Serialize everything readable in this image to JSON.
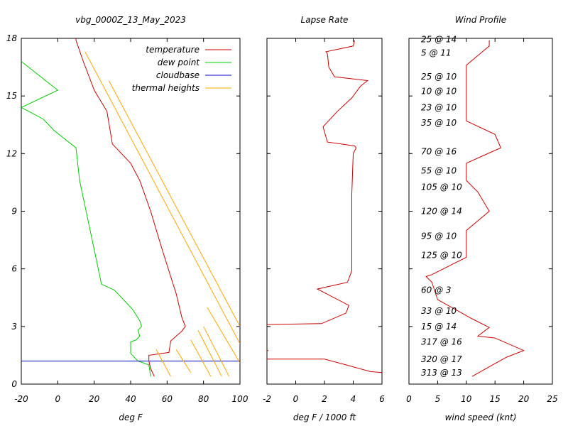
{
  "chart_data": [
    {
      "type": "line",
      "title": "vbg_0000Z_13_May_2023",
      "xlabel": "deg F",
      "ylabel": "",
      "xlim": [
        -20,
        100
      ],
      "ylim": [
        0,
        18
      ],
      "xticks": [
        -20,
        0,
        20,
        40,
        60,
        80,
        100
      ],
      "yticks": [
        0,
        3,
        6,
        9,
        12,
        15,
        18
      ],
      "legend_position": "top-right",
      "series": [
        {
          "name": "temperature",
          "color": "#cc0000",
          "points": [
            [
              53,
              0.4
            ],
            [
              51,
              0.8
            ],
            [
              50,
              1.2
            ],
            [
              50,
              1.5
            ],
            [
              61,
              1.65
            ],
            [
              62,
              2.25
            ],
            [
              68,
              2.75
            ],
            [
              70,
              3.0
            ],
            [
              68,
              3.5
            ],
            [
              65,
              4.7
            ],
            [
              63,
              5.3
            ],
            [
              57,
              7.1
            ],
            [
              51,
              9.0
            ],
            [
              45,
              10.6
            ],
            [
              40,
              11.5
            ],
            [
              30,
              12.5
            ],
            [
              27,
              14.2
            ],
            [
              20,
              15.3
            ],
            [
              14,
              16.8
            ],
            [
              10,
              17.9
            ],
            [
              10,
              18.0
            ]
          ]
        },
        {
          "name": "dew point",
          "color": "#00cc00",
          "points": [
            [
              51,
              0.4
            ],
            [
              50,
              1.0
            ],
            [
              44,
              1.2
            ],
            [
              40,
              1.6
            ],
            [
              40,
              2.2
            ],
            [
              43,
              2.3
            ],
            [
              45,
              2.5
            ],
            [
              44,
              2.8
            ],
            [
              46,
              3.0
            ],
            [
              45,
              3.3
            ],
            [
              41,
              3.9
            ],
            [
              31,
              4.9
            ],
            [
              24,
              5.2
            ],
            [
              20,
              7.0
            ],
            [
              12,
              10.6
            ],
            [
              10,
              12.3
            ],
            [
              -2,
              13.2
            ],
            [
              -8,
              13.8
            ],
            [
              -18,
              14.3
            ],
            [
              -20,
              14.4
            ],
            [
              0,
              15.3
            ],
            [
              -20,
              16.8
            ]
          ]
        },
        {
          "name": "cloudbase",
          "color": "#0000cc",
          "points": [
            [
              -20,
              1.2
            ],
            [
              100,
              1.2
            ]
          ]
        }
      ],
      "thermal_heights": {
        "name": "thermal heights",
        "color": "#ffa500",
        "lines": [
          [
            [
              54,
              1.8
            ],
            [
              62,
              0.4
            ]
          ],
          [
            [
              65,
              1.8
            ],
            [
              73,
              0.6
            ]
          ],
          [
            [
              84,
              0.4
            ],
            [
              73,
              2.3
            ]
          ],
          [
            [
              90,
              0.4
            ],
            [
              77,
              2.8
            ]
          ],
          [
            [
              94,
              0.4
            ],
            [
              80,
              3.0
            ]
          ],
          [
            [
              100,
              3.0
            ],
            [
              28,
              15.8
            ]
          ],
          [
            [
              100,
              2.1
            ],
            [
              15,
              17.3
            ]
          ],
          [
            [
              100,
              1.1
            ],
            [
              82,
              4.0
            ]
          ]
        ]
      }
    },
    {
      "type": "line",
      "title": "Lapse Rate",
      "xlabel": "deg F / 1000 ft",
      "ylabel": "",
      "xlim": [
        -2,
        6
      ],
      "ylim": [
        0,
        18
      ],
      "xticks": [
        -2,
        0,
        2,
        4,
        6
      ],
      "series": [
        {
          "name": "",
          "color": "#cc0000",
          "points": [
            [
              6,
              0.6
            ],
            [
              5.2,
              0.65
            ],
            [
              3.5,
              1.0
            ],
            [
              2,
              1.3
            ],
            [
              -2,
              1.3
            ],
            null,
            [
              -2,
              1.75
            ],
            [
              -1.9,
              1.75
            ],
            null,
            [
              -2,
              3.1
            ],
            [
              1.8,
              3.15
            ],
            [
              3.5,
              3.7
            ],
            [
              3.7,
              4.1
            ],
            [
              1.5,
              4.95
            ],
            [
              3.6,
              5.3
            ],
            [
              3.9,
              5.9
            ],
            [
              3.9,
              9.0
            ],
            [
              3.9,
              9.9
            ],
            [
              4.0,
              12.0
            ],
            [
              4.2,
              12.3
            ],
            [
              4.1,
              12.4
            ],
            [
              2.2,
              12.6
            ],
            [
              1.9,
              13.4
            ],
            [
              2.9,
              14.2
            ],
            [
              3.9,
              14.9
            ],
            [
              4.5,
              15.5
            ],
            [
              5.0,
              15.8
            ],
            [
              2.7,
              16.0
            ],
            [
              2.3,
              16.5
            ],
            [
              2.2,
              17.2
            ],
            [
              2.1,
              17.3
            ],
            [
              4.0,
              17.6
            ],
            [
              4.1,
              17.9
            ]
          ]
        }
      ]
    },
    {
      "type": "line",
      "title": "Wind Profile",
      "xlabel": "wind speed (knt)",
      "ylabel": "",
      "xlim": [
        0,
        25
      ],
      "ylim": [
        0,
        18
      ],
      "xticks": [
        0,
        5,
        10,
        15,
        20,
        25
      ],
      "series": [
        {
          "name": "",
          "color": "#cc0000",
          "points": [
            [
              11,
              0.4
            ],
            [
              14,
              0.9
            ],
            [
              17,
              1.4
            ],
            [
              20,
              1.75
            ],
            [
              15,
              2.4
            ],
            [
              12,
              2.5
            ],
            [
              14,
              2.95
            ],
            [
              11,
              3.4
            ],
            [
              5,
              4.4
            ],
            [
              4,
              5.3
            ],
            [
              3,
              5.6
            ],
            [
              4,
              5.7
            ],
            [
              10,
              6.6
            ],
            [
              10,
              6.8
            ],
            [
              10,
              7.6
            ],
            [
              10,
              8.0
            ],
            [
              14,
              9.0
            ],
            [
              12,
              10.0
            ],
            [
              10,
              10.6
            ],
            [
              10,
              11.2
            ],
            [
              10,
              11.5
            ],
            [
              13,
              11.9
            ],
            [
              16,
              12.3
            ],
            [
              15,
              13.0
            ],
            [
              10,
              13.7
            ],
            [
              10,
              14.2
            ],
            [
              10,
              14.9
            ],
            [
              10,
              15.2
            ],
            [
              10,
              15.9
            ],
            [
              10,
              16.4
            ],
            [
              10,
              16.6
            ],
            [
              12,
              17.1
            ],
            [
              14,
              17.6
            ],
            [
              14,
              17.9
            ]
          ]
        }
      ],
      "annotations": [
        {
          "text": "25 @ 14",
          "y": 17.95
        },
        {
          "text": "5 @ 11",
          "y": 17.25
        },
        {
          "text": "25 @ 10",
          "y": 16.0
        },
        {
          "text": "10 @ 10",
          "y": 15.25
        },
        {
          "text": "23 @ 10",
          "y": 14.4
        },
        {
          "text": "35 @ 10",
          "y": 13.6
        },
        {
          "text": "70 @ 16",
          "y": 12.1
        },
        {
          "text": "55 @ 10",
          "y": 11.1
        },
        {
          "text": "105 @ 10",
          "y": 10.25
        },
        {
          "text": "120 @ 14",
          "y": 9.0
        },
        {
          "text": "95 @ 10",
          "y": 7.7
        },
        {
          "text": "125 @ 10",
          "y": 6.7
        },
        {
          "text": "60 @ 3",
          "y": 4.9
        },
        {
          "text": "33 @ 10",
          "y": 3.8
        },
        {
          "text": "15 @ 14",
          "y": 3.0
        },
        {
          "text": "317 @ 16",
          "y": 2.2
        },
        {
          "text": "320 @ 17",
          "y": 1.3
        },
        {
          "text": "313 @ 13",
          "y": 0.6
        }
      ]
    }
  ]
}
